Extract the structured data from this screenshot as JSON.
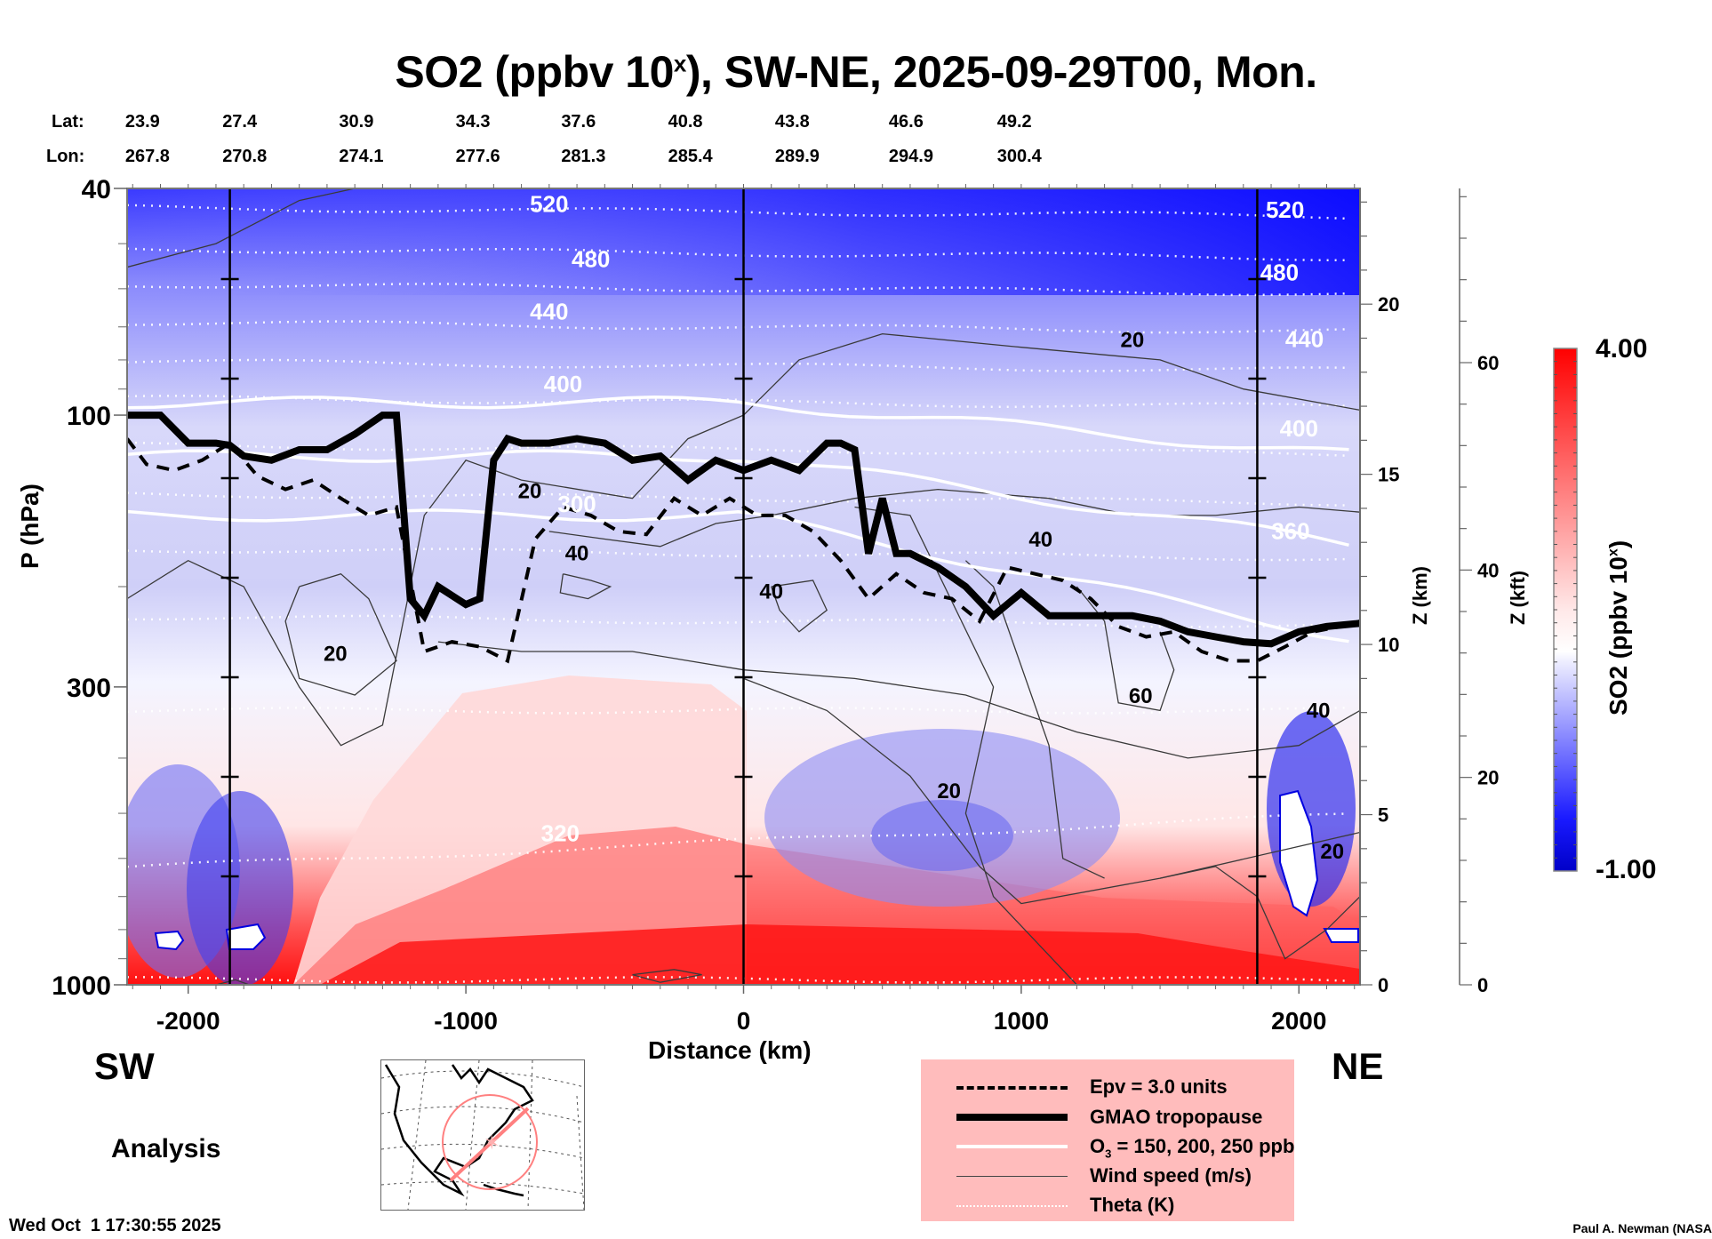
{
  "chart_data": {
    "type": "heatmap",
    "title": "SO2 (ppbv 10^x), SW-NE, 2025-09-29T00, Mon.",
    "title_parts": {
      "pre": "SO2 (ppbv 10",
      "sup": "x",
      "post": "), SW-NE, 2025-09-29T00, Mon."
    },
    "xlabel": "Distance (km)",
    "ylabel": "P (hPa)",
    "y2label": "Z (km)",
    "y3label": "Z (kft)",
    "xlim": [
      -2220,
      2220
    ],
    "ylim": [
      1000,
      40
    ],
    "yscale": "log",
    "x_ticks": [
      -2000,
      -1000,
      0,
      1000,
      2000
    ],
    "y_ticks": [
      40,
      100,
      300,
      1000
    ],
    "z_km_ticks": [
      0,
      5,
      10,
      15,
      20
    ],
    "z_kft_ticks": [
      0,
      20,
      40,
      60
    ],
    "direction_left": "SW",
    "direction_right": "NE",
    "vertical_markers_km": [
      -1850,
      0,
      1850
    ],
    "lat_label": "Lat:",
    "lon_label": "Lon:",
    "latitudes": [
      "23.9",
      "27.4",
      "30.9",
      "34.3",
      "37.6",
      "40.8",
      "43.8",
      "46.6",
      "49.2"
    ],
    "longitudes": [
      "267.8",
      "270.8",
      "274.1",
      "277.6",
      "281.3",
      "285.4",
      "289.9",
      "294.9",
      "300.4"
    ],
    "colorbar": {
      "label_pre": "SO2 (ppbv 10",
      "label_sup": "x",
      "label_post": ")",
      "min": -1.0,
      "max": 4.0,
      "min_label": "-1.00",
      "max_label": "4.00",
      "colors": [
        "#0000c8",
        "#ffffff",
        "#ff0000"
      ],
      "levels": 40
    },
    "theta_labels_K": [
      {
        "value": "520",
        "x": -700,
        "p": 44
      },
      {
        "value": "480",
        "x": -550,
        "p": 55
      },
      {
        "value": "440",
        "x": -700,
        "p": 68
      },
      {
        "value": "400",
        "x": -650,
        "p": 91
      },
      {
        "value": "300",
        "x": -600,
        "p": 148
      },
      {
        "value": "320",
        "x": -660,
        "p": 560
      },
      {
        "value": "520",
        "x": 1950,
        "p": 45
      },
      {
        "value": "480",
        "x": 1930,
        "p": 58
      },
      {
        "value": "440",
        "x": 2020,
        "p": 76
      },
      {
        "value": "400",
        "x": 2000,
        "p": 109
      },
      {
        "value": "360",
        "x": 1970,
        "p": 165
      }
    ],
    "wind_labels_ms": [
      {
        "value": "20",
        "x": 1400,
        "p": 76
      },
      {
        "value": "20",
        "x": -770,
        "p": 140
      },
      {
        "value": "40",
        "x": -600,
        "p": 180
      },
      {
        "value": "20",
        "x": -1470,
        "p": 270
      },
      {
        "value": "40",
        "x": 100,
        "p": 210
      },
      {
        "value": "40",
        "x": 1070,
        "p": 170
      },
      {
        "value": "60",
        "x": 1430,
        "p": 320
      },
      {
        "value": "20",
        "x": 740,
        "p": 470
      },
      {
        "value": "40",
        "x": 2070,
        "p": 340
      },
      {
        "value": "20",
        "x": 2120,
        "p": 600
      }
    ],
    "tropopause_hPa": {
      "x": [
        -2220,
        -2100,
        -2000,
        -1900,
        -1850,
        -1800,
        -1700,
        -1600,
        -1500,
        -1400,
        -1300,
        -1250,
        -1200,
        -1150,
        -1100,
        -1000,
        -950,
        -900,
        -850,
        -800,
        -700,
        -600,
        -500,
        -400,
        -300,
        -200,
        -100,
        0,
        100,
        200,
        300,
        350,
        400,
        450,
        500,
        550,
        600,
        700,
        800,
        900,
        1000,
        1100,
        1200,
        1300,
        1400,
        1500,
        1600,
        1700,
        1800,
        1900,
        2000,
        2100,
        2220
      ],
      "p": [
        100,
        100,
        112,
        112,
        113,
        118,
        120,
        115,
        115,
        108,
        100,
        100,
        210,
        225,
        200,
        215,
        210,
        120,
        110,
        112,
        112,
        110,
        112,
        120,
        118,
        130,
        120,
        125,
        120,
        125,
        112,
        112,
        115,
        175,
        140,
        175,
        175,
        185,
        200,
        225,
        205,
        225,
        225,
        225,
        225,
        230,
        240,
        245,
        250,
        252,
        240,
        235,
        232
      ]
    },
    "epv_3_hPa": {
      "x": [
        -2220,
        -2150,
        -2050,
        -1950,
        -1850,
        -1750,
        -1650,
        -1550,
        -1450,
        -1350,
        -1250,
        -1150,
        -1050,
        -950,
        -850,
        -750,
        -650,
        -550,
        -450,
        -350,
        -250,
        -150,
        -50,
        50,
        150,
        250,
        350,
        450,
        550,
        650,
        750,
        850,
        950,
        1050,
        1150,
        1250,
        1350,
        1450,
        1550,
        1650,
        1750,
        1850,
        1950,
        2050,
        2150,
        2220
      ],
      "p": [
        110,
        122,
        125,
        120,
        112,
        128,
        135,
        130,
        140,
        150,
        145,
        260,
        250,
        255,
        270,
        165,
        145,
        150,
        160,
        162,
        140,
        150,
        140,
        150,
        150,
        160,
        180,
        210,
        190,
        205,
        210,
        230,
        185,
        190,
        195,
        210,
        235,
        245,
        240,
        260,
        270,
        270,
        255,
        240,
        235,
        230
      ]
    },
    "o3_isolines_ppb": [
      150,
      200,
      250
    ],
    "series_legend": [
      {
        "name": "Epv = 3.0 units",
        "style": "dashed-thick"
      },
      {
        "name": "GMAO tropopause",
        "style": "solid-thick"
      },
      {
        "name": "O3 = 150, 200, 250 ppb",
        "style": "solid-white"
      },
      {
        "name": "Wind speed (m/s)",
        "style": "solid-thin"
      },
      {
        "name": "Theta (K)",
        "style": "dotted-white"
      }
    ]
  },
  "legend": {
    "epv": "Epv = 3.0 units",
    "tropopause": "GMAO tropopause",
    "o3_pre": "O",
    "o3_sub": "3",
    "o3_post": " = 150, 200, 250 ppb",
    "wind": "Wind speed (m/s)",
    "theta": "Theta (K)"
  },
  "labels": {
    "analysis": "Analysis",
    "timestamp": "Wed Oct  1 17:30:55 2025",
    "credit": "Paul A. Newman (NASA"
  },
  "map": {
    "description": "North America inset with SW-NE transect",
    "transect_color": "#ff8080"
  }
}
